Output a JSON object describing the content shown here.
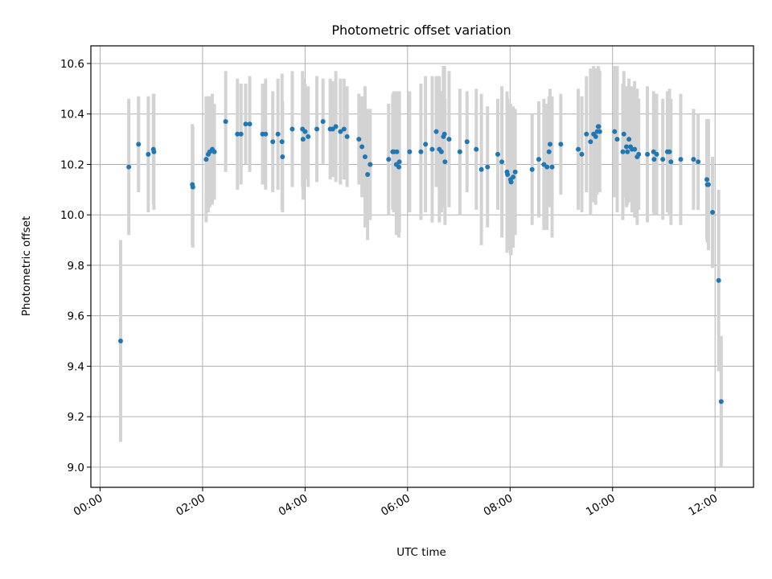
{
  "chart_data": {
    "type": "scatter",
    "title": "Photometric offset variation",
    "xlabel": "UTC time",
    "ylabel": "Photometric offset",
    "xlim": [
      -0.18,
      12.75
    ],
    "ylim": [
      8.92,
      10.67
    ],
    "grid": true,
    "x_ticks": [
      {
        "value": 0,
        "label": "00:00"
      },
      {
        "value": 2,
        "label": "02:00"
      },
      {
        "value": 4,
        "label": "04:00"
      },
      {
        "value": 6,
        "label": "06:00"
      },
      {
        "value": 8,
        "label": "08:00"
      },
      {
        "value": 10,
        "label": "10:00"
      },
      {
        "value": 12,
        "label": "12:00"
      }
    ],
    "y_ticks": [
      {
        "value": 9.0,
        "label": "9.0"
      },
      {
        "value": 9.2,
        "label": "9.2"
      },
      {
        "value": 9.4,
        "label": "9.4"
      },
      {
        "value": 9.6,
        "label": "9.6"
      },
      {
        "value": 9.8,
        "label": "9.8"
      },
      {
        "value": 10.0,
        "label": "10.0"
      },
      {
        "value": 10.2,
        "label": "10.2"
      },
      {
        "value": 10.4,
        "label": "10.4"
      },
      {
        "value": 10.6,
        "label": "10.6"
      }
    ],
    "colors": {
      "marker": "#1f77b4",
      "errorbar": "#d3d3d3",
      "grid": "#b0b0b0"
    },
    "series": [
      {
        "name": "Photometric offset",
        "x": [
          0.4,
          0.56,
          0.75,
          0.94,
          1.04,
          1.05,
          1.8,
          1.81,
          2.07,
          2.11,
          2.14,
          2.19,
          2.23,
          2.45,
          2.68,
          2.75,
          2.84,
          2.92,
          3.17,
          3.23,
          3.37,
          3.47,
          3.55,
          3.56,
          3.75,
          3.95,
          3.96,
          4.0,
          4.06,
          4.23,
          4.35,
          4.49,
          4.54,
          4.6,
          4.69,
          4.76,
          4.82,
          5.05,
          5.11,
          5.17,
          5.22,
          5.27,
          5.63,
          5.71,
          5.73,
          5.78,
          5.79,
          5.83,
          5.84,
          6.04,
          6.26,
          6.35,
          6.48,
          6.56,
          6.62,
          6.66,
          6.7,
          6.72,
          6.73,
          6.81,
          7.02,
          7.16,
          7.34,
          7.44,
          7.56,
          7.76,
          7.84,
          7.94,
          7.95,
          8.01,
          8.02,
          8.06,
          8.1,
          8.43,
          8.56,
          8.66,
          8.72,
          8.76,
          8.78,
          8.82,
          8.99,
          9.33,
          9.4,
          9.49,
          9.57,
          9.63,
          9.67,
          9.7,
          9.72,
          9.73,
          9.75,
          10.04,
          10.09,
          10.2,
          10.22,
          10.27,
          10.29,
          10.32,
          10.35,
          10.38,
          10.43,
          10.48,
          10.51,
          10.68,
          10.8,
          10.81,
          10.86,
          10.98,
          11.07,
          11.11,
          11.14,
          11.33,
          11.58,
          11.67,
          11.84,
          11.85,
          11.87,
          11.95,
          12.07,
          12.12
        ],
        "y": [
          9.5,
          10.19,
          10.28,
          10.24,
          10.26,
          10.25,
          10.12,
          10.11,
          10.22,
          10.24,
          10.25,
          10.26,
          10.25,
          10.37,
          10.32,
          10.32,
          10.36,
          10.36,
          10.32,
          10.32,
          10.29,
          10.32,
          10.29,
          10.23,
          10.34,
          10.34,
          10.3,
          10.33,
          10.31,
          10.34,
          10.37,
          10.34,
          10.34,
          10.35,
          10.33,
          10.34,
          10.31,
          10.3,
          10.27,
          10.23,
          10.16,
          10.2,
          10.22,
          10.25,
          10.25,
          10.2,
          10.25,
          10.19,
          10.21,
          10.25,
          10.25,
          10.28,
          10.26,
          10.33,
          10.26,
          10.25,
          10.31,
          10.32,
          10.21,
          10.3,
          10.25,
          10.29,
          10.26,
          10.18,
          10.19,
          10.24,
          10.21,
          10.17,
          10.16,
          10.14,
          10.13,
          10.15,
          10.17,
          10.18,
          10.22,
          10.2,
          10.19,
          10.25,
          10.28,
          10.19,
          10.28,
          10.26,
          10.24,
          10.32,
          10.29,
          10.32,
          10.31,
          10.33,
          10.35,
          10.35,
          10.33,
          10.33,
          10.3,
          10.25,
          10.32,
          10.27,
          10.25,
          10.3,
          10.27,
          10.26,
          10.26,
          10.23,
          10.24,
          10.24,
          10.25,
          10.22,
          10.24,
          10.22,
          10.25,
          10.25,
          10.21,
          10.22,
          10.22,
          10.21,
          10.14,
          10.12,
          10.12,
          10.01,
          9.74,
          9.26
        ],
        "err": [
          0.4,
          0.27,
          0.19,
          0.23,
          0.22,
          0.23,
          0.24,
          0.24,
          0.25,
          0.23,
          0.22,
          0.22,
          0.19,
          0.2,
          0.22,
          0.2,
          0.16,
          0.19,
          0.2,
          0.22,
          0.2,
          0.22,
          0.27,
          0.22,
          0.23,
          0.23,
          0.24,
          0.19,
          0.2,
          0.21,
          0.17,
          0.2,
          0.19,
          0.22,
          0.21,
          0.2,
          0.2,
          0.18,
          0.2,
          0.28,
          0.26,
          0.22,
          0.22,
          0.23,
          0.24,
          0.28,
          0.24,
          0.28,
          0.28,
          0.24,
          0.27,
          0.27,
          0.29,
          0.22,
          0.29,
          0.24,
          0.28,
          0.27,
          0.25,
          0.27,
          0.25,
          0.2,
          0.24,
          0.3,
          0.24,
          0.22,
          0.3,
          0.32,
          0.3,
          0.3,
          0.29,
          0.28,
          0.25,
          0.22,
          0.23,
          0.26,
          0.25,
          0.22,
          0.22,
          0.28,
          0.2,
          0.24,
          0.23,
          0.23,
          0.29,
          0.27,
          0.27,
          0.25,
          0.24,
          0.23,
          0.24,
          0.26,
          0.29,
          0.27,
          0.25,
          0.24,
          0.21,
          0.24,
          0.22,
          0.25,
          0.27,
          0.27,
          0.22,
          0.27,
          0.24,
          0.22,
          0.24,
          0.24,
          0.24,
          0.25,
          0.25,
          0.26,
          0.2,
          0.19,
          0.24,
          0.23,
          0.26,
          0.22,
          0.36,
          0.26
        ]
      }
    ]
  }
}
